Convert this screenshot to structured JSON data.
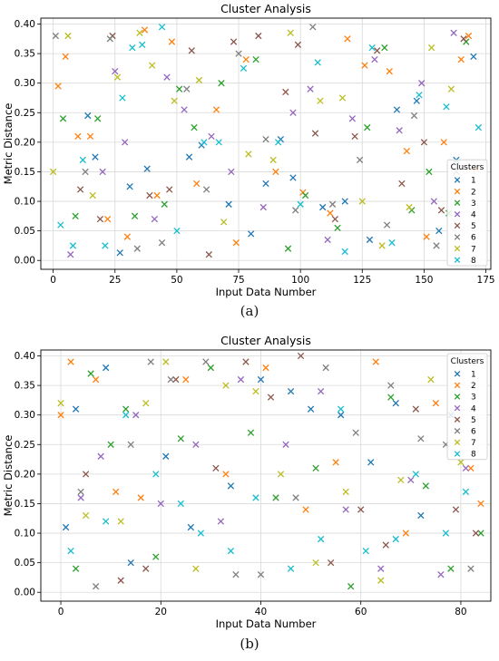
{
  "panels": [
    {
      "caption": "(a)"
    },
    {
      "caption": "(b)"
    }
  ],
  "chart_data": [
    {
      "type": "scatter",
      "marker": "x",
      "title": "Cluster Analysis",
      "xlabel": "Input Data Number",
      "ylabel": "Metric Distance",
      "xlim": [
        -5,
        177
      ],
      "ylim": [
        -0.015,
        0.41
      ],
      "xticks": [
        0,
        25,
        50,
        75,
        100,
        125,
        150,
        175
      ],
      "yticks": [
        0.0,
        0.05,
        0.1,
        0.15,
        0.2,
        0.25,
        0.3,
        0.35,
        0.4
      ],
      "grid": true,
      "legend": {
        "title": "Clusters",
        "position": "lower-right"
      },
      "colors": [
        "#1f77b4",
        "#ff7f0e",
        "#2ca02c",
        "#9467bd",
        "#8c564b",
        "#7f7f7f",
        "#bcbd22",
        "#17becf"
      ],
      "series": [
        {
          "name": "1",
          "x": [
            14,
            17,
            27,
            31,
            38,
            55,
            60,
            71,
            80,
            86,
            92,
            97,
            109,
            118,
            128,
            139,
            147,
            156,
            163,
            170
          ],
          "y": [
            0.245,
            0.175,
            0.013,
            0.125,
            0.155,
            0.175,
            0.195,
            0.095,
            0.045,
            0.13,
            0.205,
            0.14,
            0.09,
            0.1,
            0.035,
            0.255,
            0.27,
            0.05,
            0.17,
            0.345
          ]
        },
        {
          "name": "2",
          "x": [
            2,
            5,
            10,
            15,
            22,
            30,
            37,
            42,
            48,
            58,
            66,
            74,
            78,
            90,
            101,
            112,
            119,
            126,
            136,
            143,
            151,
            158,
            165,
            168,
            171
          ],
          "y": [
            0.295,
            0.345,
            0.21,
            0.21,
            0.07,
            0.04,
            0.39,
            0.11,
            0.37,
            0.13,
            0.255,
            0.03,
            0.34,
            0.15,
            0.115,
            0.08,
            0.375,
            0.33,
            0.32,
            0.185,
            0.04,
            0.2,
            0.34,
            0.38,
            0.155
          ]
        },
        {
          "name": "3",
          "x": [
            4,
            9,
            18,
            33,
            45,
            51,
            57,
            68,
            82,
            95,
            102,
            115,
            127,
            134,
            145,
            152,
            160,
            167
          ],
          "y": [
            0.24,
            0.075,
            0.24,
            0.075,
            0.095,
            0.29,
            0.225,
            0.3,
            0.34,
            0.02,
            0.11,
            0.055,
            0.225,
            0.36,
            0.085,
            0.15,
            0.08,
            0.37
          ]
        },
        {
          "name": "4",
          "x": [
            7,
            20,
            25,
            29,
            41,
            46,
            53,
            64,
            72,
            85,
            97,
            104,
            111,
            121,
            130,
            140,
            149,
            154,
            162
          ],
          "y": [
            0.01,
            0.15,
            0.32,
            0.2,
            0.07,
            0.31,
            0.255,
            0.21,
            0.15,
            0.09,
            0.25,
            0.29,
            0.035,
            0.24,
            0.34,
            0.22,
            0.3,
            0.1,
            0.385
          ]
        },
        {
          "name": "5",
          "x": [
            11,
            19,
            24,
            39,
            47,
            56,
            63,
            73,
            83,
            94,
            99,
            106,
            114,
            122,
            131,
            141,
            150,
            157,
            166
          ],
          "y": [
            0.12,
            0.07,
            0.38,
            0.11,
            0.12,
            0.355,
            0.01,
            0.37,
            0.38,
            0.285,
            0.365,
            0.215,
            0.07,
            0.21,
            0.355,
            0.13,
            0.2,
            0.085,
            0.375
          ]
        },
        {
          "name": "6",
          "x": [
            1,
            13,
            23,
            34,
            44,
            54,
            62,
            75,
            86,
            98,
            105,
            113,
            124,
            135,
            146,
            155,
            163
          ],
          "y": [
            0.38,
            0.15,
            0.375,
            0.02,
            0.03,
            0.29,
            0.12,
            0.35,
            0.205,
            0.085,
            0.395,
            0.095,
            0.17,
            0.06,
            0.245,
            0.025,
            0.15
          ]
        },
        {
          "name": "7",
          "x": [
            0,
            6,
            16,
            26,
            35,
            40,
            49,
            59,
            69,
            79,
            89,
            96,
            108,
            117,
            125,
            133,
            144,
            153,
            161
          ],
          "y": [
            0.15,
            0.38,
            0.11,
            0.31,
            0.385,
            0.33,
            0.27,
            0.305,
            0.065,
            0.18,
            0.17,
            0.385,
            0.27,
            0.275,
            0.1,
            0.025,
            0.09,
            0.36,
            0.29
          ]
        },
        {
          "name": "8",
          "x": [
            3,
            8,
            12,
            21,
            28,
            32,
            36,
            44,
            50,
            61,
            67,
            77,
            91,
            100,
            107,
            118,
            129,
            137,
            148,
            159,
            172
          ],
          "y": [
            0.06,
            0.025,
            0.17,
            0.025,
            0.275,
            0.36,
            0.365,
            0.395,
            0.05,
            0.2,
            0.2,
            0.325,
            0.2,
            0.095,
            0.335,
            0.015,
            0.36,
            0.03,
            0.28,
            0.26,
            0.225
          ]
        }
      ]
    },
    {
      "type": "scatter",
      "marker": "x",
      "title": "Cluster Analysis",
      "xlabel": "Input Data Number",
      "ylabel": "Metric Distance",
      "xlim": [
        -4,
        86
      ],
      "ylim": [
        -0.015,
        0.41
      ],
      "xticks": [
        0,
        20,
        40,
        60,
        80
      ],
      "yticks": [
        0.0,
        0.05,
        0.1,
        0.15,
        0.2,
        0.25,
        0.3,
        0.35,
        0.4
      ],
      "grid": true,
      "legend": {
        "title": "Clusters",
        "position": "upper-right"
      },
      "colors": [
        "#1f77b4",
        "#ff7f0e",
        "#2ca02c",
        "#9467bd",
        "#8c564b",
        "#7f7f7f",
        "#bcbd22",
        "#17becf"
      ],
      "series": [
        {
          "name": "1",
          "x": [
            1,
            3,
            9,
            14,
            21,
            26,
            34,
            40,
            46,
            50,
            56,
            62,
            67,
            72,
            78
          ],
          "y": [
            0.11,
            0.31,
            0.38,
            0.05,
            0.23,
            0.11,
            0.18,
            0.36,
            0.34,
            0.31,
            0.3,
            0.22,
            0.32,
            0.13,
            0.3
          ]
        },
        {
          "name": "2",
          "x": [
            0,
            2,
            7,
            11,
            16,
            25,
            33,
            41,
            49,
            55,
            63,
            69,
            75,
            82,
            84
          ],
          "y": [
            0.3,
            0.39,
            0.36,
            0.17,
            0.16,
            0.36,
            0.2,
            0.38,
            0.14,
            0.22,
            0.39,
            0.1,
            0.32,
            0.21,
            0.15
          ]
        },
        {
          "name": "3",
          "x": [
            3,
            6,
            10,
            13,
            19,
            24,
            30,
            38,
            43,
            51,
            58,
            66,
            73,
            78,
            84
          ],
          "y": [
            0.04,
            0.37,
            0.25,
            0.31,
            0.06,
            0.26,
            0.38,
            0.27,
            0.16,
            0.21,
            0.01,
            0.33,
            0.18,
            0.04,
            0.1
          ]
        },
        {
          "name": "4",
          "x": [
            4,
            8,
            15,
            20,
            27,
            32,
            36,
            45,
            52,
            57,
            64,
            70,
            76,
            81
          ],
          "y": [
            0.16,
            0.23,
            0.3,
            0.15,
            0.25,
            0.12,
            0.36,
            0.25,
            0.34,
            0.14,
            0.04,
            0.19,
            0.03,
            0.21
          ]
        },
        {
          "name": "5",
          "x": [
            5,
            12,
            17,
            23,
            31,
            37,
            42,
            48,
            54,
            60,
            65,
            71,
            79,
            83
          ],
          "y": [
            0.2,
            0.02,
            0.04,
            0.36,
            0.21,
            0.39,
            0.33,
            0.4,
            0.05,
            0.14,
            0.08,
            0.31,
            0.14,
            0.1
          ]
        },
        {
          "name": "6",
          "x": [
            4,
            7,
            14,
            18,
            22,
            29,
            35,
            40,
            47,
            53,
            59,
            66,
            72,
            77,
            82
          ],
          "y": [
            0.17,
            0.01,
            0.25,
            0.39,
            0.36,
            0.39,
            0.03,
            0.03,
            0.16,
            0.38,
            0.27,
            0.35,
            0.26,
            0.25,
            0.04
          ]
        },
        {
          "name": "7",
          "x": [
            0,
            5,
            12,
            17,
            21,
            27,
            33,
            39,
            44,
            51,
            57,
            64,
            68,
            74,
            80
          ],
          "y": [
            0.32,
            0.13,
            0.12,
            0.32,
            0.39,
            0.04,
            0.35,
            0.34,
            0.2,
            0.05,
            0.17,
            0.02,
            0.19,
            0.36,
            0.22
          ]
        },
        {
          "name": "8",
          "x": [
            2,
            9,
            13,
            19,
            24,
            28,
            34,
            39,
            46,
            52,
            56,
            61,
            67,
            71,
            77,
            81
          ],
          "y": [
            0.07,
            0.12,
            0.3,
            0.2,
            0.15,
            0.1,
            0.07,
            0.16,
            0.04,
            0.09,
            0.31,
            0.07,
            0.09,
            0.2,
            0.1,
            0.17
          ]
        }
      ]
    }
  ]
}
